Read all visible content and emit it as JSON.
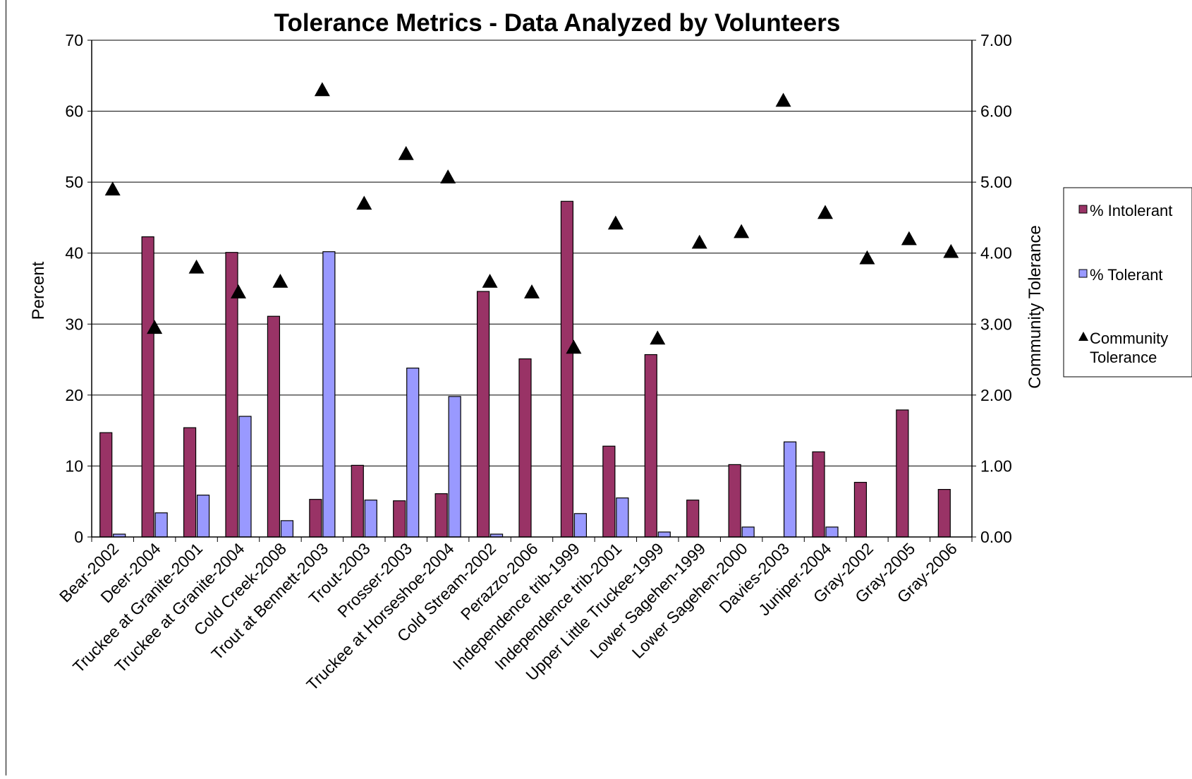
{
  "chart_data": {
    "type": "bar",
    "title": "Tolerance Metrics - Data Analyzed by Volunteers",
    "xlabel": "",
    "ylabel": "Percent",
    "y2label": "Community Tolerance",
    "ylim": [
      0,
      70
    ],
    "y2lim": [
      0,
      7
    ],
    "yticks": [
      "0",
      "10",
      "20",
      "30",
      "40",
      "50",
      "60",
      "70"
    ],
    "y2ticks": [
      "0.00",
      "1.00",
      "2.00",
      "3.00",
      "4.00",
      "5.00",
      "6.00",
      "7.00"
    ],
    "grid": true,
    "legend_position": "right",
    "categories": [
      "Bear-2002",
      "Deer-2004",
      "Truckee at Granite-2001",
      "Truckee at Granite-2004",
      "Cold Creek-2008",
      "Trout at Bennett-2003",
      "Trout-2003",
      "Prosser-2003",
      "Truckee at Horseshoe-2004",
      "Cold Stream-2002",
      "Perazzo-2006",
      "Independence trib-1999",
      "Independence trib-2001",
      "Upper Little Truckee-1999",
      "Lower Sagehen-1999",
      "Lower Sagehen-2000",
      "Davies-2003",
      "Juniper-2004",
      "Gray-2002",
      "Gray-2005",
      "Gray-2006"
    ],
    "series": [
      {
        "name": "% Intolerant",
        "type": "bar",
        "axis": "left",
        "color": "#993366",
        "values": [
          14.7,
          42.3,
          15.4,
          40.1,
          31.1,
          5.3,
          10.1,
          5.1,
          6.1,
          34.6,
          25.1,
          47.3,
          12.8,
          25.7,
          5.2,
          10.2,
          0,
          12.0,
          7.7,
          17.9,
          6.7
        ]
      },
      {
        "name": "% Tolerant",
        "type": "bar",
        "axis": "left",
        "color": "#9999ff",
        "values": [
          0.4,
          3.4,
          5.9,
          17.0,
          2.3,
          40.2,
          5.2,
          23.8,
          19.8,
          0.4,
          0,
          3.3,
          5.5,
          0.7,
          0,
          1.4,
          13.4,
          1.4,
          0,
          0,
          0
        ]
      },
      {
        "name": "Community Tolerance",
        "type": "scatter",
        "axis": "right",
        "marker": "triangle",
        "color": "#000000",
        "values": [
          4.9,
          2.95,
          3.8,
          3.45,
          3.6,
          6.3,
          4.7,
          5.4,
          5.07,
          3.6,
          3.45,
          2.67,
          4.42,
          2.8,
          4.15,
          4.3,
          6.15,
          4.57,
          3.93,
          4.2,
          4.02
        ]
      }
    ]
  }
}
